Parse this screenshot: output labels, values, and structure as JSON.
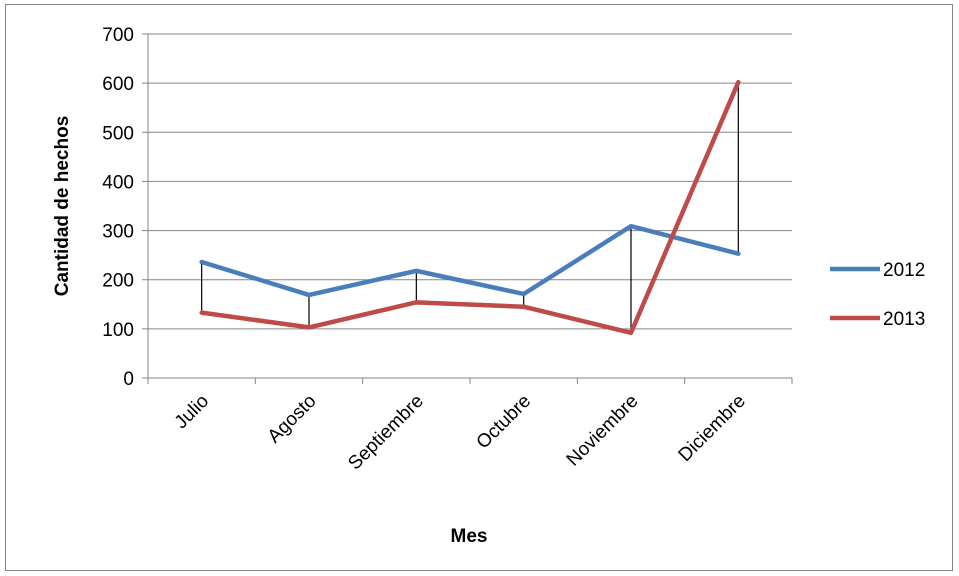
{
  "chart_data": {
    "type": "line",
    "title": "",
    "xlabel": "Mes",
    "ylabel": "Cantidad de hechos",
    "categories": [
      "Julio",
      "Agosto",
      "Septiembre",
      "Octubre",
      "Noviembre",
      "Diciembre"
    ],
    "ylim": [
      0,
      700
    ],
    "yticks": [
      0,
      100,
      200,
      300,
      400,
      500,
      600,
      700
    ],
    "grid": true,
    "legend_position": "right",
    "high_low_lines": true,
    "series": [
      {
        "name": "2012",
        "color": "#4A7EBB",
        "values": [
          236,
          169,
          218,
          171,
          309,
          253
        ]
      },
      {
        "name": "2013",
        "color": "#BE4B48",
        "values": [
          133,
          103,
          154,
          145,
          92,
          602
        ]
      }
    ]
  }
}
